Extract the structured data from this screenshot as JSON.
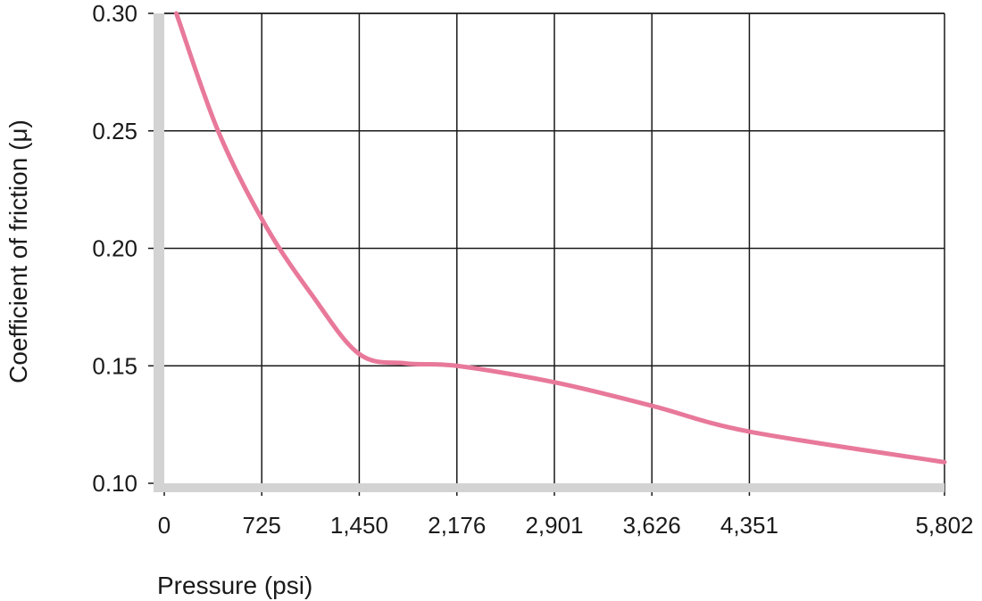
{
  "chart_data": {
    "type": "line",
    "title": "",
    "xlabel": "Pressure (psi)",
    "ylabel": "Coefficient of friction (μ)",
    "x_ticks": [
      0,
      725,
      1450,
      2176,
      2901,
      3626,
      4351,
      5802
    ],
    "x_tick_labels": [
      "0",
      "725",
      "1,450",
      "2,176",
      "2,901",
      "3,626",
      "4,351",
      "5,802"
    ],
    "y_ticks": [
      0.1,
      0.15,
      0.2,
      0.25,
      0.3
    ],
    "y_tick_labels": [
      "0.10",
      "0.15",
      "0.20",
      "0.25",
      "0.30"
    ],
    "xlim": [
      0,
      5802
    ],
    "ylim": [
      0.1,
      0.3
    ],
    "grid": true,
    "series": [
      {
        "color": "#e8799a",
        "points": [
          {
            "x": 90,
            "y": 0.3
          },
          {
            "x": 400,
            "y": 0.25
          },
          {
            "x": 750,
            "y": 0.21
          },
          {
            "x": 1100,
            "y": 0.18
          },
          {
            "x": 1450,
            "y": 0.155
          },
          {
            "x": 1800,
            "y": 0.151
          },
          {
            "x": 2176,
            "y": 0.15
          },
          {
            "x": 2901,
            "y": 0.143
          },
          {
            "x": 3626,
            "y": 0.133
          },
          {
            "x": 4351,
            "y": 0.122
          },
          {
            "x": 5802,
            "y": 0.109
          }
        ]
      }
    ]
  }
}
